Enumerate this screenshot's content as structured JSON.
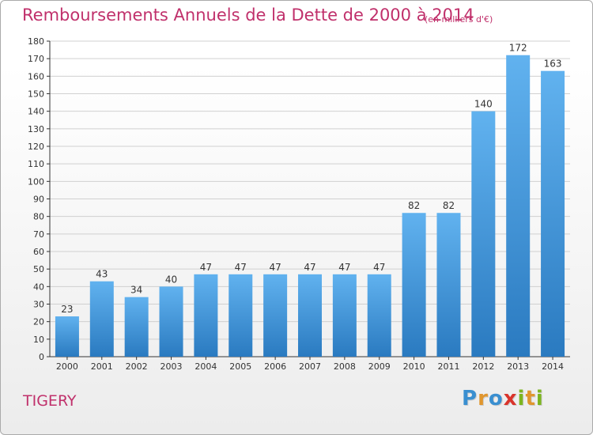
{
  "header": {
    "title": "Remboursements Annuels de la Dette de 2000 à 2014",
    "subtitle": "(en milliers d'€)"
  },
  "commune": "TIGERY",
  "logo": {
    "text": "Proxiti",
    "letters": [
      {
        "ch": "P",
        "color": "#3a8fd0"
      },
      {
        "ch": "r",
        "color": "#e0962e"
      },
      {
        "ch": "o",
        "color": "#3a8fd0"
      },
      {
        "ch": "x",
        "color": "#d9342b"
      },
      {
        "ch": "i",
        "color": "#7cb51f"
      },
      {
        "ch": "t",
        "color": "#e0962e"
      },
      {
        "ch": "i",
        "color": "#7cb51f"
      }
    ]
  },
  "colors": {
    "title": "#c0306b",
    "bar_top": "#61b2ef",
    "bar_bottom": "#2a7ac0",
    "grid": "#d0d0d0",
    "axis": "#333333"
  },
  "chart_data": {
    "type": "bar",
    "title": "Remboursements Annuels de la Dette de 2000 à 2014",
    "subtitle": "(en milliers d'€)",
    "xlabel": "",
    "ylabel": "",
    "categories": [
      "2000",
      "2001",
      "2002",
      "2003",
      "2004",
      "2005",
      "2006",
      "2007",
      "2008",
      "2009",
      "2010",
      "2011",
      "2012",
      "2013",
      "2014"
    ],
    "values": [
      23,
      43,
      34,
      40,
      47,
      47,
      47,
      47,
      47,
      47,
      82,
      82,
      140,
      172,
      163
    ],
    "ylim": [
      0,
      180
    ],
    "ytick_step": 10,
    "grid": true,
    "data_labels": true
  }
}
